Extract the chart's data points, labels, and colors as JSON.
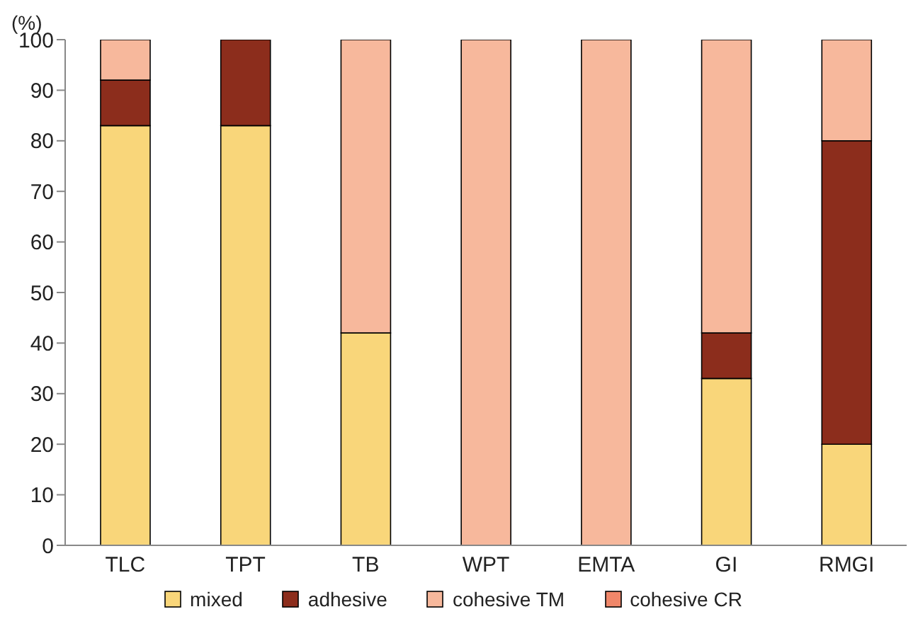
{
  "chart_data": {
    "type": "bar",
    "stacked": true,
    "ylabel": "(%)",
    "categories": [
      "TLC",
      "TPT",
      "TB",
      "WPT",
      "EMTA",
      "GI",
      "RMGI"
    ],
    "series": [
      {
        "name": "mixed",
        "color": "#f9d67a",
        "values": [
          83,
          83,
          42,
          0,
          0,
          33,
          20
        ]
      },
      {
        "name": "adhesive",
        "color": "#8c2d1c",
        "values": [
          9,
          17,
          0,
          0,
          0,
          9,
          60
        ]
      },
      {
        "name": "cohesive TM",
        "color": "#f7b89c",
        "values": [
          8,
          0,
          58,
          100,
          100,
          58,
          20
        ]
      },
      {
        "name": "cohesive CR",
        "color": "#f0876a",
        "values": [
          0,
          0,
          0,
          0,
          0,
          0,
          0
        ]
      }
    ],
    "ylim": [
      0,
      100
    ],
    "yticks": [
      0,
      10,
      20,
      30,
      40,
      50,
      60,
      70,
      80,
      90,
      100
    ],
    "grid": false,
    "legend": "bottom"
  }
}
